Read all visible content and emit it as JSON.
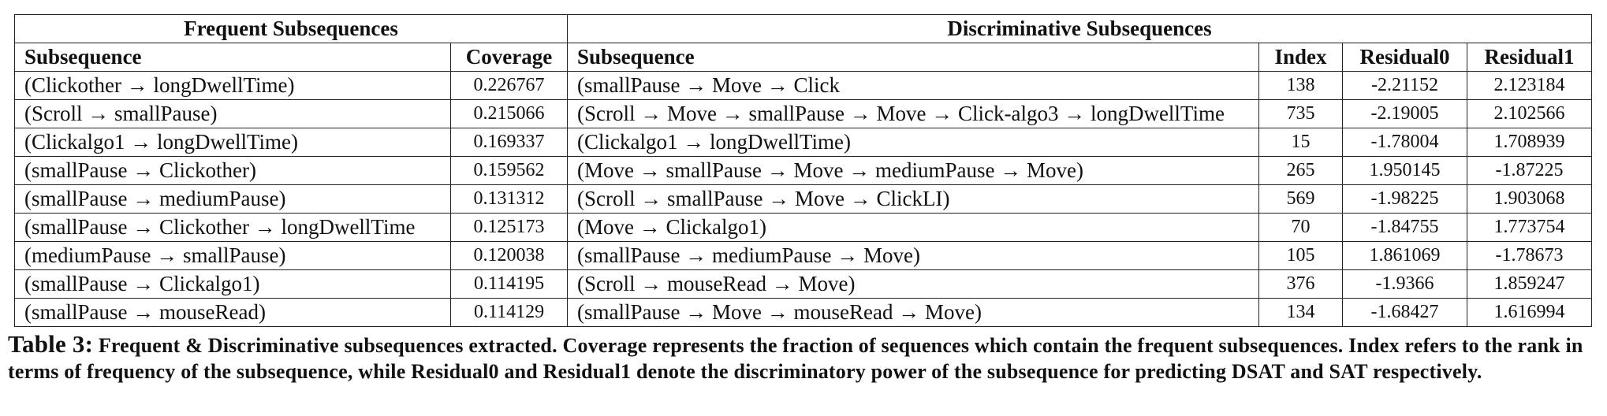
{
  "table": {
    "group_headers": [
      "Frequent Subsequences",
      "Discriminative Subsequences"
    ],
    "column_headers": [
      "Subsequence",
      "Coverage",
      "Subsequence",
      "Index",
      "Residual0",
      "Residual1"
    ],
    "rows": [
      [
        "(Clickother → longDwellTime)",
        "0.226767",
        "(smallPause → Move → Click",
        "138",
        "-2.21152",
        "2.123184"
      ],
      [
        "(Scroll → smallPause)",
        "0.215066",
        "(Scroll → Move → smallPause → Move → Click-algo3 → longDwellTime",
        "735",
        "-2.19005",
        "2.102566"
      ],
      [
        "(Clickalgo1 → longDwellTime)",
        "0.169337",
        "(Clickalgo1 → longDwellTime)",
        "15",
        "-1.78004",
        "1.708939"
      ],
      [
        "(smallPause → Clickother)",
        "0.159562",
        "(Move → smallPause → Move → mediumPause → Move)",
        "265",
        "1.950145",
        "-1.87225"
      ],
      [
        "(smallPause → mediumPause)",
        "0.131312",
        "(Scroll → smallPause → Move → ClickLI)",
        "569",
        "-1.98225",
        "1.903068"
      ],
      [
        "(smallPause → Clickother → longDwellTime",
        "0.125173",
        "(Move → Clickalgo1)",
        "70",
        "-1.84755",
        "1.773754"
      ],
      [
        "(mediumPause → smallPause)",
        "0.120038",
        "(smallPause → mediumPause → Move)",
        "105",
        "1.861069",
        "-1.78673"
      ],
      [
        "(smallPause → Clickalgo1)",
        "0.114195",
        "(Scroll → mouseRead → Move)",
        "376",
        "-1.9366",
        "1.859247"
      ],
      [
        "(smallPause → mouseRead)",
        "0.114129",
        "(smallPause → Move → mouseRead → Move)",
        "134",
        "-1.68427",
        "1.616994"
      ]
    ]
  },
  "caption": {
    "label": "Table 3:",
    "text": "Frequent & Discriminative subsequences extracted. Coverage represents the fraction of sequences which contain the frequent subsequences. Index refers to the rank in terms of frequency of the subsequence, while Residual0 and Residual1 denote the discriminatory power of the subsequence for predicting DSAT and SAT respectively."
  }
}
